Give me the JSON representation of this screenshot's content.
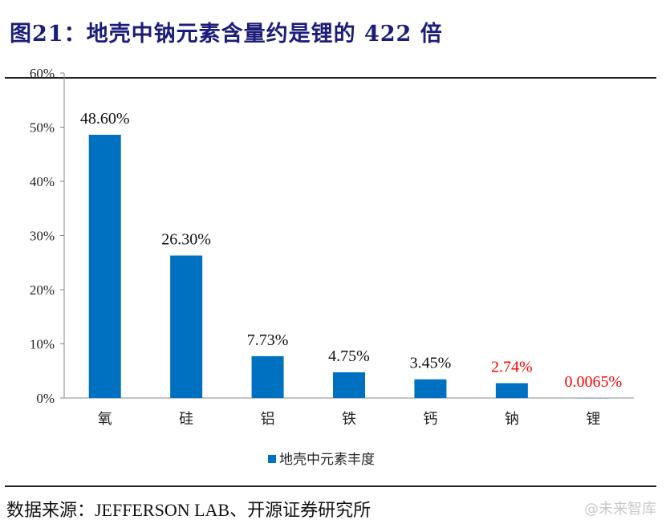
{
  "title": "图21：地壳中钠元素含量约是锂的 422 倍",
  "source": "数据来源：JEFFERSON LAB、开源证券研究所",
  "watermark": "@未来智库",
  "colors": {
    "bar": "#0070C0",
    "highlight_label": "#FF0000",
    "title": "#1c1c7a"
  },
  "chart_data": {
    "type": "bar",
    "categories": [
      "氧",
      "硅",
      "铝",
      "铁",
      "钙",
      "钠",
      "锂"
    ],
    "values": [
      48.6,
      26.3,
      7.73,
      4.75,
      3.45,
      2.74,
      0.0065
    ],
    "data_labels": [
      "48.60%",
      "26.30%",
      "7.73%",
      "4.75%",
      "3.45%",
      "2.74%",
      "0.0065%"
    ],
    "highlighted": [
      false,
      false,
      false,
      false,
      false,
      true,
      true
    ],
    "series_name": "地壳中元素丰度",
    "ylim": [
      0,
      60
    ],
    "yticks": [
      "0%",
      "10%",
      "20%",
      "30%",
      "40%",
      "50%",
      "60%"
    ],
    "grid": false,
    "legend_position": "bottom"
  }
}
